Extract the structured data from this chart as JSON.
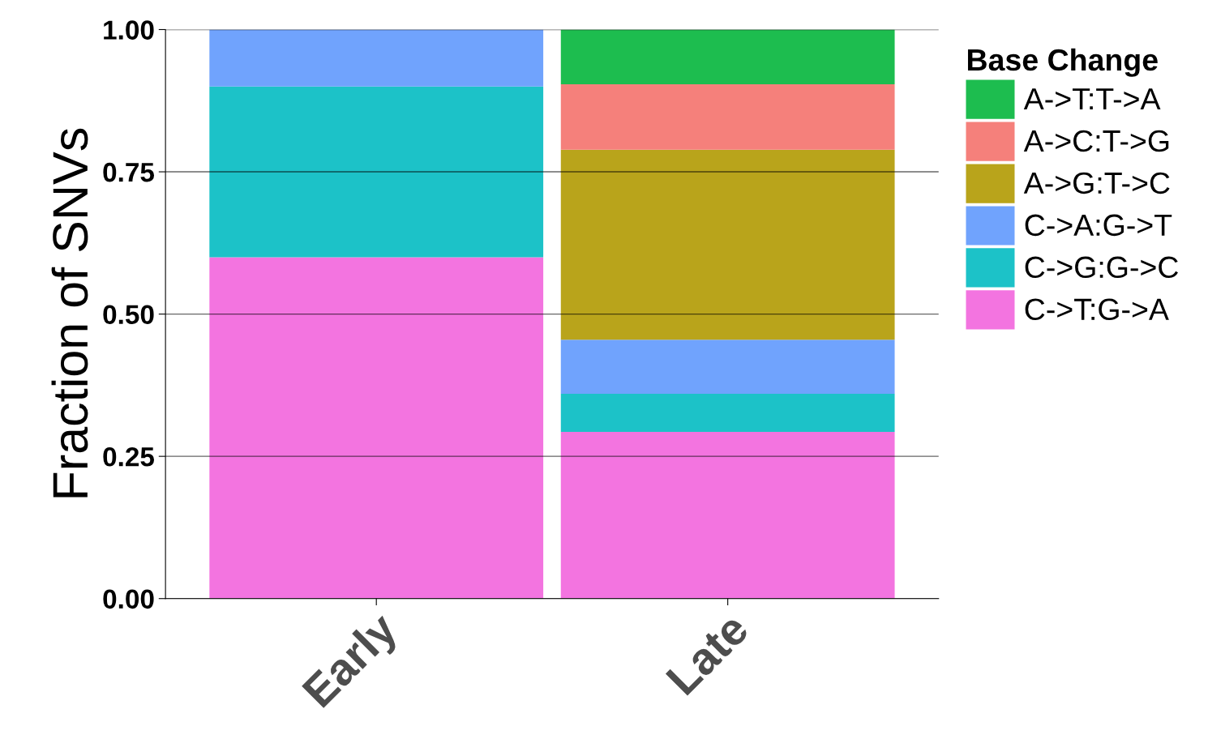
{
  "chart_data": {
    "type": "bar",
    "stacked": true,
    "ylabel": "Fraction of SNVs",
    "legend_title": "Base Change",
    "legend": "right",
    "categories": [
      "Early",
      "Late"
    ],
    "series": [
      {
        "name": "C->T:G->A",
        "color": "#f374e0",
        "values": [
          0.6,
          0.293
        ]
      },
      {
        "name": "C->G:G->C",
        "color": "#1cc2c8",
        "values": [
          0.3,
          0.067
        ]
      },
      {
        "name": "C->A:G->T",
        "color": "#70a3fd",
        "values": [
          0.1,
          0.095
        ]
      },
      {
        "name": "A->G:T->C",
        "color": "#b9a41b",
        "values": [
          0,
          0.334
        ]
      },
      {
        "name": "A->C:T->G",
        "color": "#f5807b",
        "values": [
          0,
          0.115
        ]
      },
      {
        "name": "A->T:T->A",
        "color": "#1dbd4f",
        "values": [
          0,
          0.096
        ]
      }
    ],
    "ylim": [
      0,
      1
    ],
    "yticks": [
      {
        "value": 0,
        "label": "0.00"
      },
      {
        "value": 0.25,
        "label": "0.25"
      },
      {
        "value": 0.5,
        "label": "0.50"
      },
      {
        "value": 0.75,
        "label": "0.75"
      },
      {
        "value": 1,
        "label": "1.00"
      }
    ],
    "grid": "y"
  }
}
